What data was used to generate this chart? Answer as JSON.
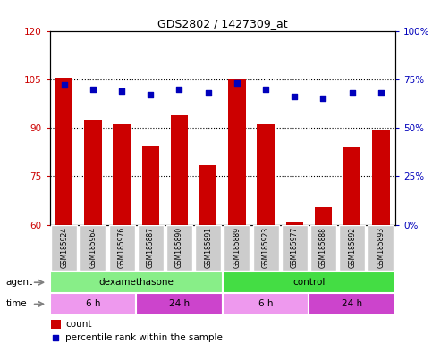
{
  "title": "GDS2802 / 1427309_at",
  "samples": [
    "GSM185924",
    "GSM185964",
    "GSM185976",
    "GSM185887",
    "GSM185890",
    "GSM185891",
    "GSM185889",
    "GSM185923",
    "GSM185977",
    "GSM185888",
    "GSM185892",
    "GSM185893"
  ],
  "counts": [
    105.5,
    92.5,
    91.0,
    84.5,
    94.0,
    78.5,
    105.0,
    91.0,
    61.0,
    65.5,
    84.0,
    89.5
  ],
  "percentile_ranks_pct": [
    72,
    70,
    69,
    67,
    70,
    68,
    73,
    70,
    66,
    65,
    68,
    68
  ],
  "ylim_left": [
    60,
    120
  ],
  "ylim_right": [
    0,
    100
  ],
  "yticks_left": [
    60,
    75,
    90,
    105,
    120
  ],
  "yticks_right": [
    0,
    25,
    50,
    75,
    100
  ],
  "ytick_labels_right": [
    "0%",
    "25%",
    "50%",
    "75%",
    "100%"
  ],
  "bar_color": "#cc0000",
  "dot_color": "#0000bb",
  "grid_color": "#000000",
  "agent_groups": [
    {
      "label": "dexamethasone",
      "start": 0,
      "end": 6,
      "color": "#88ee88"
    },
    {
      "label": "control",
      "start": 6,
      "end": 12,
      "color": "#44dd44"
    }
  ],
  "time_groups": [
    {
      "label": "6 h",
      "start": 0,
      "end": 3,
      "color": "#ee99ee"
    },
    {
      "label": "24 h",
      "start": 3,
      "end": 6,
      "color": "#cc44cc"
    },
    {
      "label": "6 h",
      "start": 6,
      "end": 9,
      "color": "#ee99ee"
    },
    {
      "label": "24 h",
      "start": 9,
      "end": 12,
      "color": "#cc44cc"
    }
  ],
  "tick_bg_color": "#cccccc",
  "legend_count_color": "#cc0000",
  "legend_pct_color": "#0000bb",
  "legend_count_label": "count",
  "legend_pct_label": "percentile rank within the sample",
  "agent_label": "agent",
  "time_label": "time",
  "bg_color": "#ffffff"
}
